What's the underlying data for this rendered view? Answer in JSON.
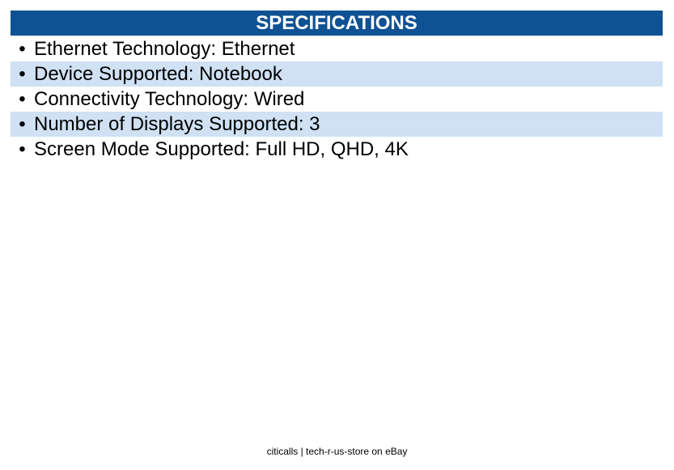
{
  "header": {
    "title": "SPECIFICATIONS"
  },
  "items": [
    "Ethernet Technology: Ethernet",
    "Device Supported: Notebook",
    "Connectivity Technology: Wired",
    "Number of Displays Supported: 3",
    "Screen Mode Supported: Full HD, QHD, 4K"
  ],
  "footer": "citicalls | tech-r-us-store on eBay"
}
